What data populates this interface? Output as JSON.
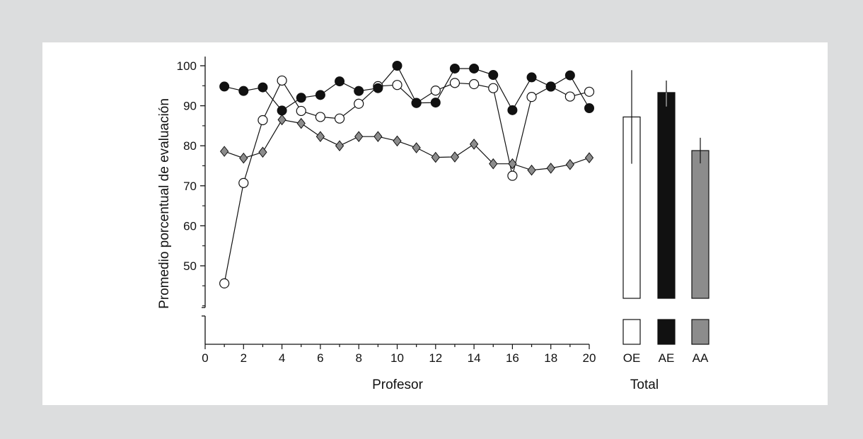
{
  "chart_data": [
    {
      "type": "line",
      "xlabel": "Profesor",
      "ylabel": "Promedio porcentual de evaluación",
      "xlim": [
        0,
        20
      ],
      "ylim": [
        50,
        100
      ],
      "x_ticks": [
        0,
        2,
        4,
        6,
        8,
        10,
        12,
        14,
        16,
        18,
        20
      ],
      "y_ticks": [
        50,
        60,
        70,
        80,
        90,
        100
      ],
      "axis_break": true,
      "grid": false,
      "x": [
        1,
        2,
        3,
        4,
        5,
        6,
        7,
        8,
        9,
        10,
        11,
        12,
        13,
        14,
        15,
        16,
        17,
        18,
        19,
        20
      ],
      "series": [
        {
          "marker": "filled-circle",
          "color": "#111111",
          "values": [
            94.8,
            93.7,
            94.6,
            88.8,
            92.0,
            92.7,
            96.1,
            93.7,
            94.4,
            100.0,
            90.7,
            90.8,
            99.3,
            99.3,
            97.7,
            88.9,
            97.1,
            94.8,
            97.6,
            89.4
          ]
        },
        {
          "marker": "open-circle",
          "color": "#ffffff",
          "values": [
            45.6,
            70.7,
            86.4,
            96.3,
            88.7,
            87.2,
            86.8,
            90.5,
            94.9,
            95.2,
            90.7,
            93.8,
            95.7,
            95.4,
            94.4,
            72.5,
            92.2,
            94.8,
            92.3,
            93.5
          ]
        },
        {
          "marker": "diamond",
          "color": "#8c8c8c",
          "values": [
            78.6,
            76.9,
            78.4,
            86.5,
            85.6,
            82.3,
            80.0,
            82.3,
            82.3,
            81.2,
            79.5,
            77.1,
            77.2,
            80.4,
            75.5,
            75.5,
            73.9,
            74.4,
            75.3,
            77.0
          ]
        }
      ]
    },
    {
      "type": "bar",
      "xlabel": "Total",
      "categories": [
        "OE",
        "AE",
        "AA"
      ],
      "values": [
        87.2,
        93.3,
        78.8
      ],
      "error_bars": [
        {
          "low": 75.5,
          "high": 98.9
        },
        {
          "low": 89.8,
          "high": 96.3
        },
        {
          "low": 75.6,
          "high": 82.0
        }
      ],
      "colors": [
        "#ffffff",
        "#111111",
        "#8c8c8c"
      ],
      "ylim": [
        50,
        100
      ],
      "axis_break": true
    }
  ]
}
